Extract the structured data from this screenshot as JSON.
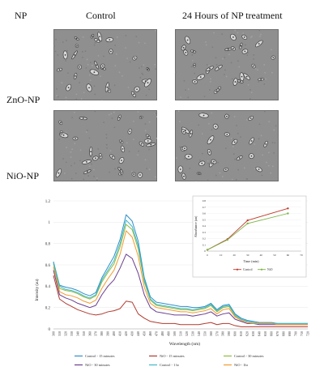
{
  "figure": {
    "np_header": "NP",
    "col_control": "Control",
    "col_treatment": "24 Hours of NP treatment",
    "row_zno": "ZnO-NP",
    "row_nio": "NiO-NP"
  },
  "colors": {
    "control_15": "#2f8fc9",
    "nio_15": "#b03a2e",
    "control_30": "#8fbc3c",
    "nio_30": "#6a3d8f",
    "control_1h": "#3fb8c9",
    "nio_1h": "#f29a2e",
    "inset_control": "#c0392b",
    "inset_nio": "#7cb342"
  },
  "chart_data": [
    {
      "type": "line",
      "title": "",
      "xlabel": "Wavelength (nm)",
      "ylabel": "Intensity (au)",
      "ylim": [
        0,
        1.2
      ],
      "yticks": [
        "0",
        "0.2",
        "0.4",
        "0.6",
        "0.8",
        "1",
        "1.2"
      ],
      "x": [
        300,
        310,
        320,
        330,
        340,
        350,
        360,
        370,
        380,
        390,
        400,
        410,
        420,
        430,
        440,
        450,
        460,
        470,
        480,
        490,
        500,
        510,
        520,
        530,
        540,
        550,
        560,
        570,
        580,
        590,
        600,
        610,
        620,
        630,
        640,
        650,
        660,
        670,
        680,
        690,
        700,
        710,
        720
      ],
      "xticks": [
        "300",
        "310",
        "320",
        "330",
        "340",
        "350",
        "360",
        "370",
        "380",
        "390",
        "400",
        "410",
        "420",
        "430",
        "440",
        "450",
        "460",
        "470",
        "480",
        "490",
        "500",
        "510",
        "520",
        "530",
        "540",
        "550",
        "560",
        "570",
        "580",
        "590",
        "600",
        "610",
        "620",
        "630",
        "640",
        "650",
        "660",
        "670",
        "680",
        "690",
        "700",
        "710",
        "720"
      ],
      "legend": "bottom",
      "series": [
        {
          "name": "Control - 15 minutes",
          "color_key": "control_15",
          "values": [
            0.63,
            0.41,
            0.39,
            0.38,
            0.36,
            0.33,
            0.31,
            0.34,
            0.48,
            0.58,
            0.68,
            0.84,
            1.07,
            1.01,
            0.82,
            0.48,
            0.3,
            0.25,
            0.24,
            0.23,
            0.22,
            0.21,
            0.21,
            0.2,
            0.2,
            0.21,
            0.24,
            0.18,
            0.22,
            0.23,
            0.14,
            0.1,
            0.08,
            0.07,
            0.06,
            0.06,
            0.06,
            0.05,
            0.05,
            0.05,
            0.05,
            0.05,
            0.05
          ]
        },
        {
          "name": "NiO - 15 minutes",
          "color_key": "nio_15",
          "values": [
            0.5,
            0.28,
            0.24,
            0.21,
            0.18,
            0.16,
            0.14,
            0.13,
            0.14,
            0.16,
            0.17,
            0.19,
            0.26,
            0.25,
            0.14,
            0.1,
            0.07,
            0.06,
            0.05,
            0.05,
            0.05,
            0.04,
            0.04,
            0.04,
            0.04,
            0.05,
            0.06,
            0.04,
            0.05,
            0.05,
            0.03,
            0.02,
            0.02,
            0.02,
            0.02,
            0.02,
            0.02,
            0.02,
            0.02,
            0.02,
            0.02,
            0.02,
            0.02
          ]
        },
        {
          "name": "Control - 30 minutes",
          "color_key": "control_30",
          "values": [
            0.61,
            0.38,
            0.36,
            0.35,
            0.33,
            0.3,
            0.28,
            0.31,
            0.44,
            0.53,
            0.61,
            0.77,
            0.98,
            0.93,
            0.75,
            0.44,
            0.27,
            0.22,
            0.21,
            0.2,
            0.19,
            0.18,
            0.18,
            0.17,
            0.18,
            0.19,
            0.22,
            0.16,
            0.2,
            0.21,
            0.12,
            0.09,
            0.07,
            0.06,
            0.05,
            0.05,
            0.05,
            0.05,
            0.05,
            0.05,
            0.05,
            0.05,
            0.05
          ]
        },
        {
          "name": "NiO - 30 minutes",
          "color_key": "nio_30",
          "values": [
            0.55,
            0.32,
            0.29,
            0.27,
            0.24,
            0.22,
            0.2,
            0.22,
            0.32,
            0.4,
            0.46,
            0.57,
            0.7,
            0.66,
            0.52,
            0.32,
            0.2,
            0.16,
            0.15,
            0.14,
            0.13,
            0.13,
            0.13,
            0.12,
            0.13,
            0.14,
            0.16,
            0.12,
            0.14,
            0.15,
            0.09,
            0.07,
            0.05,
            0.05,
            0.04,
            0.04,
            0.04,
            0.04,
            0.04,
            0.04,
            0.04,
            0.04,
            0.04
          ]
        },
        {
          "name": "Control - 1 hr",
          "color_key": "control_1h",
          "values": [
            0.62,
            0.4,
            0.37,
            0.36,
            0.34,
            0.31,
            0.29,
            0.32,
            0.46,
            0.55,
            0.64,
            0.8,
            1.02,
            0.96,
            0.78,
            0.46,
            0.28,
            0.23,
            0.22,
            0.21,
            0.2,
            0.19,
            0.19,
            0.18,
            0.19,
            0.2,
            0.23,
            0.17,
            0.21,
            0.22,
            0.13,
            0.09,
            0.07,
            0.06,
            0.05,
            0.05,
            0.05,
            0.05,
            0.05,
            0.05,
            0.05,
            0.05,
            0.05
          ]
        },
        {
          "name": "NiO - 1hr",
          "color_key": "nio_1h",
          "values": [
            0.58,
            0.35,
            0.32,
            0.31,
            0.29,
            0.26,
            0.24,
            0.27,
            0.38,
            0.47,
            0.55,
            0.7,
            0.92,
            0.86,
            0.68,
            0.39,
            0.24,
            0.2,
            0.19,
            0.18,
            0.17,
            0.16,
            0.16,
            0.15,
            0.16,
            0.17,
            0.19,
            0.14,
            0.18,
            0.19,
            0.11,
            0.08,
            0.06,
            0.05,
            0.05,
            0.05,
            0.05,
            0.04,
            0.04,
            0.04,
            0.04,
            0.04,
            0.04
          ]
        }
      ]
    },
    {
      "type": "line",
      "title": "",
      "xlabel": "Time (min)",
      "ylabel": "Absorbance (au)",
      "xlim": [
        0,
        70
      ],
      "ylim": [
        0,
        0.8
      ],
      "xticks": [
        "0",
        "10",
        "20",
        "30",
        "40",
        "50",
        "60",
        "70"
      ],
      "yticks": [
        "0",
        "0.1",
        "0.2",
        "0.3",
        "0.4",
        "0.5",
        "0.6",
        "0.7",
        "0.8"
      ],
      "legend": "bottom",
      "series": [
        {
          "name": "Control",
          "color_key": "inset_control",
          "x": [
            0,
            15,
            30,
            60
          ],
          "values": [
            0.02,
            0.19,
            0.49,
            0.68
          ]
        },
        {
          "name": "NiO",
          "color_key": "inset_nio",
          "x": [
            0,
            15,
            30,
            60
          ],
          "values": [
            0.02,
            0.18,
            0.44,
            0.6
          ]
        }
      ]
    }
  ]
}
